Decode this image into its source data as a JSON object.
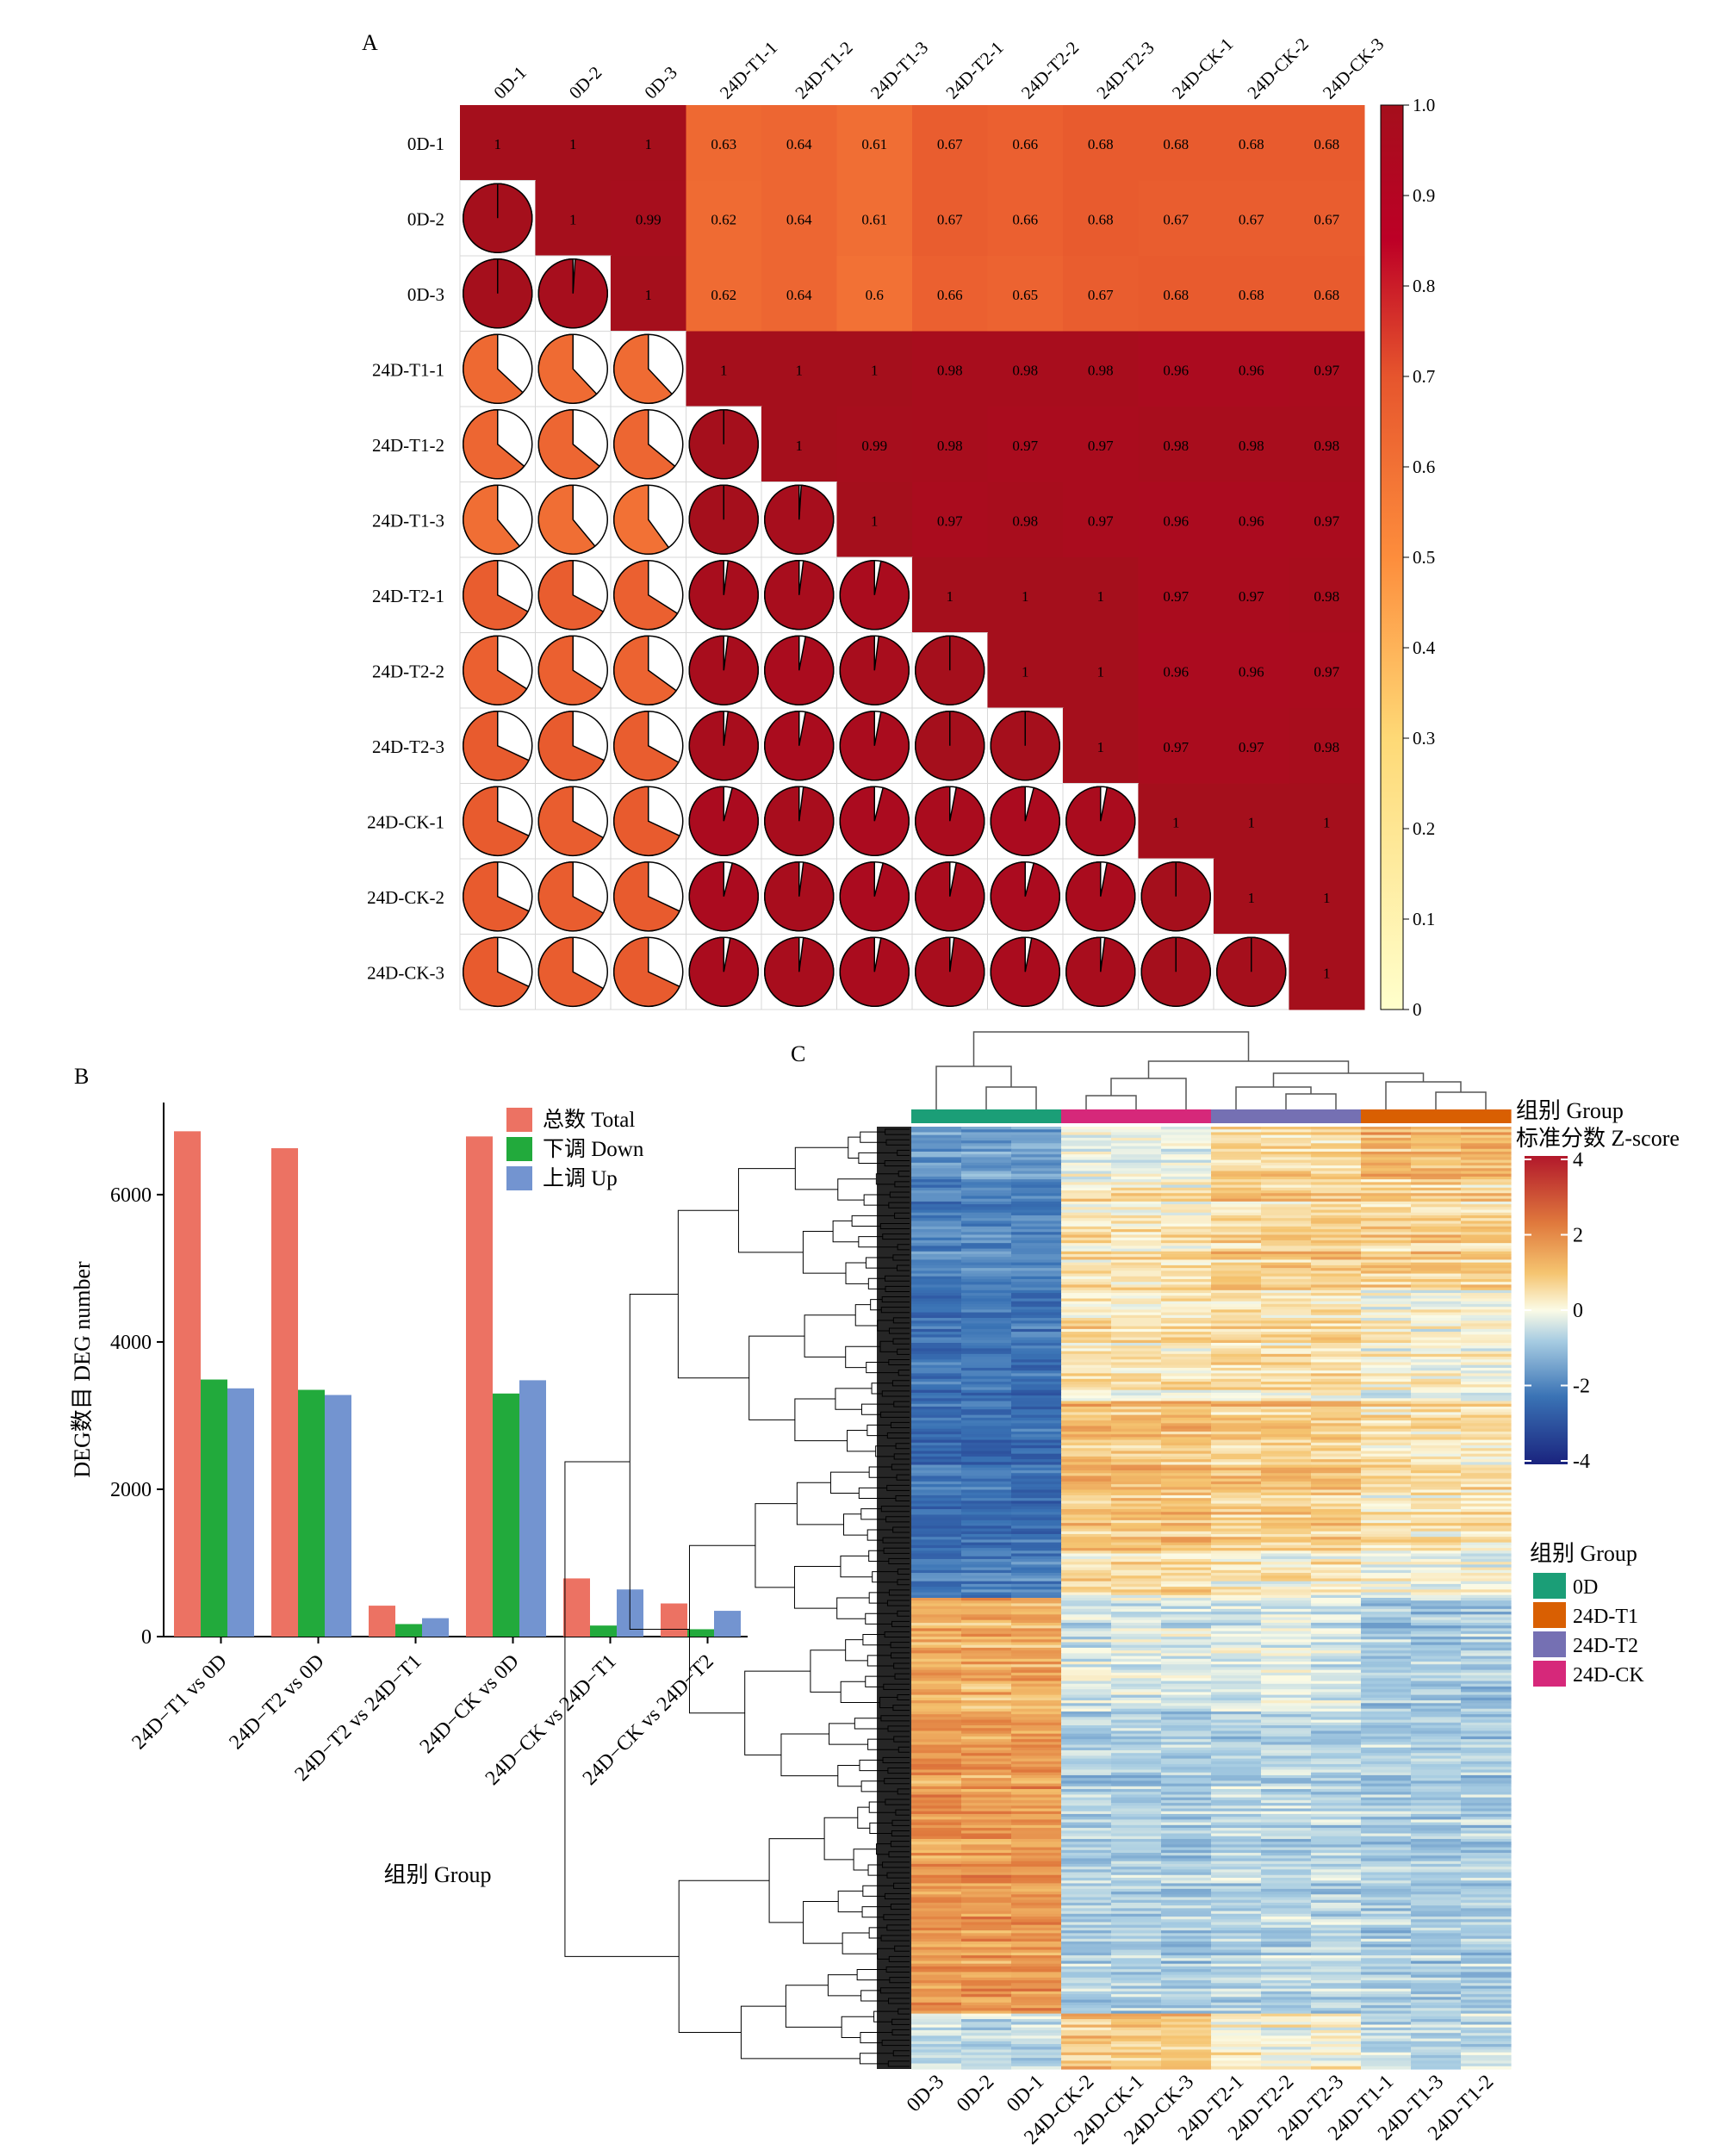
{
  "panels": {
    "a": "A",
    "b": "B",
    "c": "C"
  },
  "chart_data": [
    {
      "id": "A",
      "type": "heatmap",
      "variant": "correlation-matrix (upper: shaded squares with values, lower: pie glyphs)",
      "labels": [
        "0D-1",
        "0D-2",
        "0D-3",
        "24D-T1-1",
        "24D-T1-2",
        "24D-T1-3",
        "24D-T2-1",
        "24D-T2-2",
        "24D-T2-3",
        "24D-CK-1",
        "24D-CK-2",
        "24D-CK-3"
      ],
      "matrix": [
        [
          1,
          1,
          1,
          0.63,
          0.64,
          0.61,
          0.67,
          0.66,
          0.68,
          0.68,
          0.68,
          0.68
        ],
        [
          1,
          1,
          0.99,
          0.62,
          0.64,
          0.61,
          0.67,
          0.66,
          0.68,
          0.67,
          0.67,
          0.67
        ],
        [
          1,
          0.99,
          1,
          0.62,
          0.64,
          0.6,
          0.66,
          0.65,
          0.67,
          0.68,
          0.68,
          0.68
        ],
        [
          0.63,
          0.62,
          0.62,
          1,
          1,
          1,
          0.98,
          0.98,
          0.98,
          0.96,
          0.96,
          0.97
        ],
        [
          0.64,
          0.64,
          0.64,
          1,
          1,
          0.99,
          0.98,
          0.97,
          0.97,
          0.98,
          0.98,
          0.98
        ],
        [
          0.61,
          0.61,
          0.6,
          1,
          0.99,
          1,
          0.97,
          0.98,
          0.97,
          0.96,
          0.96,
          0.97
        ],
        [
          0.67,
          0.67,
          0.66,
          0.98,
          0.98,
          0.97,
          1,
          1,
          1,
          0.97,
          0.97,
          0.98
        ],
        [
          0.66,
          0.66,
          0.65,
          0.98,
          0.97,
          0.98,
          1,
          1,
          1,
          0.96,
          0.96,
          0.97
        ],
        [
          0.68,
          0.68,
          0.67,
          0.98,
          0.97,
          0.97,
          1,
          1,
          1,
          0.97,
          0.97,
          0.98
        ],
        [
          0.68,
          0.67,
          0.68,
          0.96,
          0.98,
          0.96,
          0.97,
          0.96,
          0.97,
          1,
          1,
          1
        ],
        [
          0.68,
          0.67,
          0.68,
          0.96,
          0.98,
          0.96,
          0.97,
          0.96,
          0.97,
          1,
          1,
          1
        ],
        [
          0.68,
          0.67,
          0.68,
          0.97,
          0.98,
          0.97,
          0.98,
          0.97,
          0.98,
          1,
          1,
          1
        ]
      ],
      "colorbar": {
        "range": [
          0,
          1
        ],
        "ticks": [
          "1.0",
          "0.9",
          "0.8",
          "0.7",
          "0.6",
          "0.5",
          "0.4",
          "0.3",
          "0.2",
          "0.1",
          "0"
        ],
        "colors": [
          "#ffffcc",
          "#fed976",
          "#fd8d3c",
          "#e6552d",
          "#bd0026",
          "#a50f1c"
        ]
      },
      "tile_color": "#a50f1c"
    },
    {
      "id": "B",
      "type": "bar",
      "categories": [
        "24D−T1 vs 0D",
        "24D−T2 vs 0D",
        "24D−T2 vs 24D−T1",
        "24D−CK vs 0D",
        "24D−CK vs 24D−T1",
        "24D−CK vs 24D−T2"
      ],
      "series": [
        {
          "name": "总数 Total",
          "color": "#ec7263",
          "values": [
            6860,
            6630,
            420,
            6790,
            790,
            450
          ]
        },
        {
          "name": "下调 Down",
          "color": "#22aa3c",
          "values": [
            3490,
            3350,
            170,
            3300,
            150,
            100
          ]
        },
        {
          "name": "上调 Up",
          "color": "#7394d0",
          "values": [
            3370,
            3280,
            250,
            3480,
            640,
            350
          ]
        }
      ],
      "ylabel": "DEG数目 DEG number",
      "xlabel": "组别 Group",
      "yticks": [
        0,
        2000,
        4000,
        6000
      ],
      "ylim": [
        0,
        7250
      ],
      "legend_position": "top-right"
    },
    {
      "id": "C",
      "type": "heatmap",
      "variant": "clustered expression heatmap",
      "columns": [
        "0D-3",
        "0D-2",
        "0D-1",
        "24D-CK-2",
        "24D-CK-1",
        "24D-CK-3",
        "24D-T2-1",
        "24D-T2-2",
        "24D-T2-3",
        "24D-T1-1",
        "24D-T1-3",
        "24D-T1-2"
      ],
      "column_groups": [
        "0D",
        "0D",
        "0D",
        "24D-CK",
        "24D-CK",
        "24D-CK",
        "24D-T2",
        "24D-T2",
        "24D-T2",
        "24D-T1",
        "24D-T1",
        "24D-T1"
      ],
      "group_annotation_title": "组别 Group",
      "scale_title": "标准分数 Z-score",
      "scale_ticks": [
        "4",
        "2",
        "0",
        "-2",
        "-4"
      ],
      "scale_range": [
        -4,
        4
      ],
      "scale_colors": [
        "#1a237e",
        "#3a73b5",
        "#a7cce2",
        "#fbfbe6",
        "#f5c470",
        "#e07a3d",
        "#b2182b"
      ],
      "legend_title": "组别 Group",
      "legend": [
        {
          "label": "0D",
          "color": "#1b9e77"
        },
        {
          "label": "24D-T1",
          "color": "#d95f02"
        },
        {
          "label": "24D-T2",
          "color": "#7570b3"
        },
        {
          "label": "24D-CK",
          "color": "#d6287a"
        }
      ]
    }
  ]
}
